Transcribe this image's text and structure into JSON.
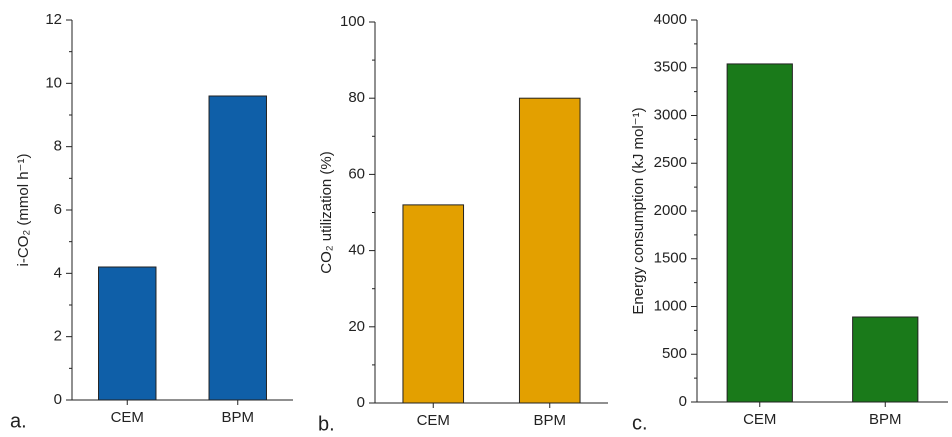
{
  "chart_data": [
    {
      "type": "bar",
      "panel_label": "a.",
      "ylabel": "i-CO₂ (mmol h⁻¹)",
      "categories": [
        "CEM",
        "BPM"
      ],
      "values": [
        4.2,
        9.6
      ],
      "color": "#0f5fa8",
      "ylim": [
        0,
        12
      ],
      "yticks": [
        0,
        2,
        4,
        6,
        8,
        10,
        12
      ]
    },
    {
      "type": "bar",
      "panel_label": "b.",
      "ylabel": "CO₂ utilization (%)",
      "categories": [
        "CEM",
        "BPM"
      ],
      "values": [
        52,
        80
      ],
      "color": "#e3a000",
      "ylim": [
        0,
        100
      ],
      "yticks": [
        0,
        20,
        40,
        60,
        80,
        100
      ]
    },
    {
      "type": "bar",
      "panel_label": "c.",
      "ylabel": "Energy consumption (kJ mol⁻¹)",
      "categories": [
        "CEM",
        "BPM"
      ],
      "values": [
        3540,
        890
      ],
      "color": "#1a7a1a",
      "ylim": [
        0,
        4000
      ],
      "yticks": [
        0,
        500,
        1000,
        1500,
        2000,
        2500,
        3000,
        3500,
        4000
      ]
    }
  ]
}
